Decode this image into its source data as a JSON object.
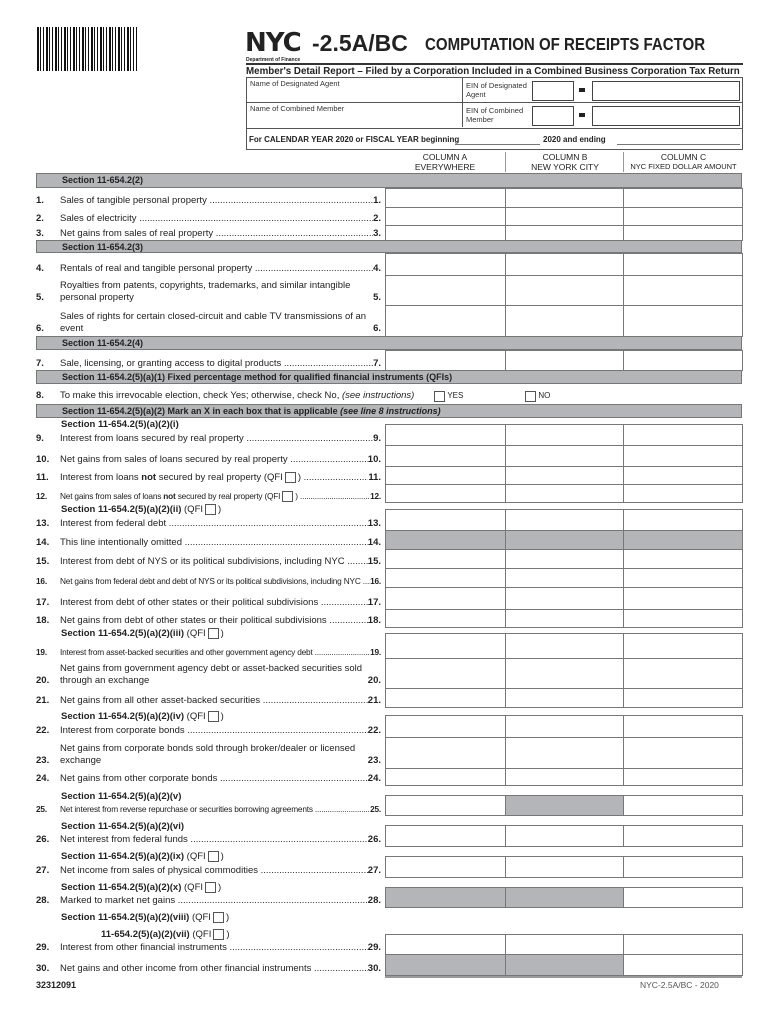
{
  "header": {
    "logo": "NYC",
    "department": "Department of Finance",
    "form_number": "-2.5A/BC",
    "title": "COMPUTATION OF RECEIPTS FACTOR",
    "subtitle": "Member's Detail Report – Filed by a Corporation Included in a Combined Business Corporation Tax Return"
  },
  "id": {
    "designated_agent_label": "Name of Designated Agent",
    "ein_agent_label": "EIN of Designated Agent",
    "combined_member_label": "Name of Combined Member",
    "ein_member_label": "EIN of Combined Member",
    "period_label": "For CALENDAR YEAR 2020 or FISCAL YEAR beginning",
    "period_mid": "2020 and ending"
  },
  "columns": [
    {
      "title": "COLUMN A",
      "sub": "EVERYWHERE"
    },
    {
      "title": "COLUMN B",
      "sub": "NEW YORK CITY"
    },
    {
      "title": "COLUMN C",
      "sub": "NYC FIXED DOLLAR AMOUNT"
    }
  ],
  "bars": [
    "Section 11-654.2(2)",
    "Section 11-654.2(3)",
    "Section 11-654.2(4)",
    "Section 11-654.2(5)(a)(1) Fixed percentage method for qualified financial instruments (QFIs)",
    "Section 11-654.2(5)(a)(2)  Mark an X in each box that is applicable (see line 8 instructions)"
  ],
  "subs": [
    {
      "text": "Section 11-654.2(5)(a)(2)(i)",
      "qfi": ""
    },
    {
      "text": "Section 11-654.2(5)(a)(2)(ii)",
      "qfi": "(QFI"
    },
    {
      "text": "Section 11-654.2(5)(a)(2)(iii)",
      "qfi": "(QFI"
    },
    {
      "text": "Section 11-654.2(5)(a)(2)(iv)",
      "qfi": "(QFI"
    },
    {
      "text": "Section 11-654.2(5)(a)(2)(v)",
      "qfi": ""
    },
    {
      "text": "Section 11-654.2(5)(a)(2)(vi)",
      "qfi": ""
    },
    {
      "text": "Section 11-654.2(5)(a)(2)(ix)",
      "qfi": "(QFI"
    },
    {
      "text": "Section 11-654.2(5)(a)(2)(x)",
      "qfi": "(QFI"
    },
    {
      "text": "Section 11-654.2(5)(a)(2)(viii)",
      "qfi": "(QFI"
    },
    {
      "text": "11-654.2(5)(a)(2)(vii)",
      "qfi": "(QFI"
    }
  ],
  "line8": {
    "num": "8.",
    "text": "To make this irrevocable election, check Yes; otherwise, check No,",
    "note": "(see instructions)",
    "yes": "YES",
    "no": "NO"
  },
  "lines": [
    {
      "num": "1.",
      "text": "Sales of tangible personal property",
      "ref": "1."
    },
    {
      "num": "2.",
      "text": "Sales of electricity",
      "ref": "2."
    },
    {
      "num": "3.",
      "text": "Net gains from sales of real property",
      "ref": "3."
    },
    {
      "num": "4.",
      "text": "Rentals of real and tangible personal property",
      "ref": "4."
    },
    {
      "num": "5.",
      "text": "Royalties from patents, copyrights, trademarks, and similar intangible personal property",
      "ref": "5."
    },
    {
      "num": "6.",
      "text": "Sales of rights for certain closed-circuit and cable TV transmissions of an event",
      "ref": "6."
    },
    {
      "num": "7.",
      "text": "Sale, licensing, or granting access to digital products",
      "ref": "7."
    },
    {
      "num": "9.",
      "text": "Interest from loans secured by real property",
      "ref": "9."
    },
    {
      "num": "10.",
      "text": "Net gains from sales of loans secured by real property",
      "ref": "10."
    },
    {
      "num": "11.",
      "text": "Interest from loans not secured by real property  (QFI ☐ )",
      "ref": "11."
    },
    {
      "num": "12.",
      "text": "Net gains from sales of loans not secured by real property (QFI ☐ )",
      "ref": "12."
    },
    {
      "num": "13.",
      "text": "Interest from federal debt",
      "ref": "13."
    },
    {
      "num": "14.",
      "text": "This line intentionally omitted",
      "ref": "14."
    },
    {
      "num": "15.",
      "text": "Interest from debt of NYS or its political subdivisions, including NYC",
      "ref": "15."
    },
    {
      "num": "16.",
      "text": "Net gains from federal debt and debt of NYS or its political subdivisions, including NYC",
      "ref": "16."
    },
    {
      "num": "17.",
      "text": "Interest from debt of other states or their political subdivisions",
      "ref": "17."
    },
    {
      "num": "18.",
      "text": "Net gains from debt of other states or their political subdivisions",
      "ref": "18."
    },
    {
      "num": "19.",
      "text": "Interest from asset-backed securities and other government agency debt",
      "ref": "19."
    },
    {
      "num": "20.",
      "text": "Net gains from government agency debt or asset-backed securities sold through an exchange",
      "ref": "20."
    },
    {
      "num": "21.",
      "text": "Net gains from all other asset-backed securities",
      "ref": "21."
    },
    {
      "num": "22.",
      "text": "Interest from corporate bonds",
      "ref": "22."
    },
    {
      "num": "23.",
      "text": "Net gains from corporate bonds sold through broker/dealer or licensed exchange",
      "ref": "23."
    },
    {
      "num": "24.",
      "text": "Net gains from other corporate bonds",
      "ref": "24."
    },
    {
      "num": "25.",
      "text": "Net interest from reverse repurchase or securities borrowing agreements",
      "ref": "25."
    },
    {
      "num": "26.",
      "text": "Net interest from federal funds",
      "ref": "26."
    },
    {
      "num": "27.",
      "text": "Net income from sales of physical commodities",
      "ref": "27."
    },
    {
      "num": "28.",
      "text": "Marked to market net gains",
      "ref": "28."
    },
    {
      "num": "29.",
      "text": "Interest from other financial instruments",
      "ref": "29."
    },
    {
      "num": "30.",
      "text": "Net gains and other income from other financial instruments",
      "ref": "30."
    }
  ],
  "footer": {
    "code": "32312091",
    "form": "NYC-2.5A/BC - 2020"
  },
  "colors": {
    "shade": "#b4b5b8"
  }
}
